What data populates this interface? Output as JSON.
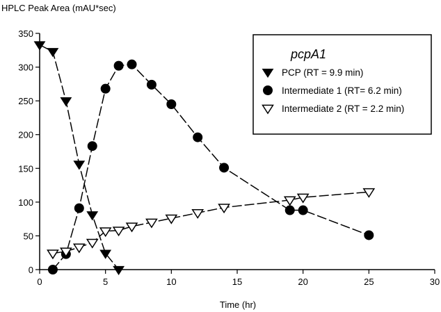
{
  "chart_data": {
    "type": "scatter",
    "title": "",
    "ylabel": "HPLC Peak Area (mAU*sec)",
    "xlabel": "Time (hr)",
    "xlim": [
      0,
      30
    ],
    "ylim": [
      0,
      350
    ],
    "xticks": [
      0,
      5,
      10,
      15,
      20,
      25,
      30
    ],
    "yticks": [
      0,
      50,
      100,
      150,
      200,
      250,
      300,
      350
    ],
    "grid": false,
    "legend": {
      "title": "pcpA1",
      "position": "top-right"
    },
    "series": [
      {
        "name": "PCP (RT = 9.9 min)",
        "marker": "filled-triangle-down",
        "line": "dashed",
        "x": [
          0,
          1,
          2,
          3,
          4,
          5,
          6
        ],
        "y": [
          333,
          323,
          250,
          156,
          81,
          24,
          0
        ]
      },
      {
        "name": "Intermediate 1 (RT= 6.2 min)",
        "marker": "filled-circle",
        "line": "dashed",
        "x": [
          1,
          2,
          3,
          4,
          5,
          6,
          7,
          8.5,
          10,
          12,
          14,
          19,
          20,
          25
        ],
        "y": [
          0,
          23,
          91,
          183,
          268,
          302,
          304,
          274,
          245,
          196,
          151,
          88,
          88,
          51
        ]
      },
      {
        "name": "Intermediate 2 (RT = 2.2 min)",
        "marker": "open-triangle-down",
        "line": "dashed",
        "x": [
          1,
          2,
          3,
          4,
          5,
          6,
          7,
          8.5,
          10,
          12,
          14,
          19,
          20,
          25
        ],
        "y": [
          24,
          27,
          33,
          40,
          57,
          58,
          64,
          70,
          76,
          84,
          92,
          103,
          107,
          115
        ]
      }
    ]
  }
}
